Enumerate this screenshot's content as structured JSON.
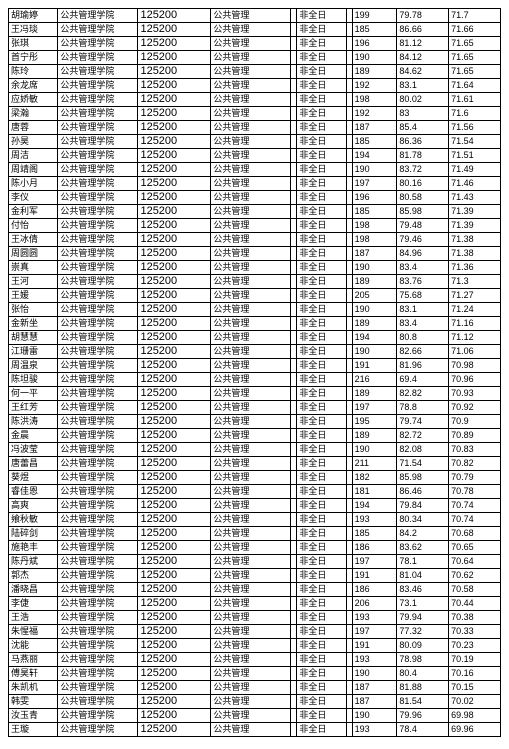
{
  "table": {
    "columns": [
      {
        "key": "name",
        "class": "col0"
      },
      {
        "key": "school",
        "class": "col1"
      },
      {
        "key": "code",
        "class": "col2"
      },
      {
        "key": "major",
        "class": "col3"
      },
      {
        "key": "gap1",
        "class": "col4"
      },
      {
        "key": "type",
        "class": "col5"
      },
      {
        "key": "gap2",
        "class": "col6"
      },
      {
        "key": "score1",
        "class": "col7"
      },
      {
        "key": "score2",
        "class": "col8"
      },
      {
        "key": "score3",
        "class": "col9"
      }
    ],
    "rows": [
      {
        "name": "胡瑜婷",
        "school": "公共管理学院",
        "code": "125200",
        "major": "公共管理",
        "gap1": "",
        "type": "非全日",
        "gap2": "",
        "score1": "199",
        "score2": "79.78",
        "score3": "71.7"
      },
      {
        "name": "王冯琰",
        "school": "公共管理学院",
        "code": "125200",
        "major": "公共管理",
        "gap1": "",
        "type": "非全日",
        "gap2": "",
        "score1": "185",
        "score2": "86.66",
        "score3": "71.66"
      },
      {
        "name": "张琪",
        "school": "公共管理学院",
        "code": "125200",
        "major": "公共管理",
        "gap1": "",
        "type": "非全日",
        "gap2": "",
        "score1": "196",
        "score2": "81.12",
        "score3": "71.65"
      },
      {
        "name": "首宁彤",
        "school": "公共管理学院",
        "code": "125200",
        "major": "公共管理",
        "gap1": "",
        "type": "非全日",
        "gap2": "",
        "score1": "190",
        "score2": "84.12",
        "score3": "71.65"
      },
      {
        "name": "陈玲",
        "school": "公共管理学院",
        "code": "125200",
        "major": "公共管理",
        "gap1": "",
        "type": "非全日",
        "gap2": "",
        "score1": "189",
        "score2": "84.62",
        "score3": "71.65"
      },
      {
        "name": "余龙席",
        "school": "公共管理学院",
        "code": "125200",
        "major": "公共管理",
        "gap1": "",
        "type": "非全日",
        "gap2": "",
        "score1": "192",
        "score2": "83.1",
        "score3": "71.64"
      },
      {
        "name": "应娇敏",
        "school": "公共管理学院",
        "code": "125200",
        "major": "公共管理",
        "gap1": "",
        "type": "非全日",
        "gap2": "",
        "score1": "198",
        "score2": "80.02",
        "score3": "71.61"
      },
      {
        "name": "梁瀚",
        "school": "公共管理学院",
        "code": "125200",
        "major": "公共管理",
        "gap1": "",
        "type": "非全日",
        "gap2": "",
        "score1": "192",
        "score2": "83",
        "score3": "71.6"
      },
      {
        "name": "唐蓉",
        "school": "公共管理学院",
        "code": "125200",
        "major": "公共管理",
        "gap1": "",
        "type": "非全日",
        "gap2": "",
        "score1": "187",
        "score2": "85.4",
        "score3": "71.56"
      },
      {
        "name": "孙昊",
        "school": "公共管理学院",
        "code": "125200",
        "major": "公共管理",
        "gap1": "",
        "type": "非全日",
        "gap2": "",
        "score1": "185",
        "score2": "86.36",
        "score3": "71.54"
      },
      {
        "name": "周洁",
        "school": "公共管理学院",
        "code": "125200",
        "major": "公共管理",
        "gap1": "",
        "type": "非全日",
        "gap2": "",
        "score1": "194",
        "score2": "81.78",
        "score3": "71.51"
      },
      {
        "name": "周靖阁",
        "school": "公共管理学院",
        "code": "125200",
        "major": "公共管理",
        "gap1": "",
        "type": "非全日",
        "gap2": "",
        "score1": "190",
        "score2": "83.72",
        "score3": "71.49"
      },
      {
        "name": "陈小月",
        "school": "公共管理学院",
        "code": "125200",
        "major": "公共管理",
        "gap1": "",
        "type": "非全日",
        "gap2": "",
        "score1": "197",
        "score2": "80.16",
        "score3": "71.46"
      },
      {
        "name": "李仪",
        "school": "公共管理学院",
        "code": "125200",
        "major": "公共管理",
        "gap1": "",
        "type": "非全日",
        "gap2": "",
        "score1": "196",
        "score2": "80.58",
        "score3": "71.43"
      },
      {
        "name": "金利军",
        "school": "公共管理学院",
        "code": "125200",
        "major": "公共管理",
        "gap1": "",
        "type": "非全日",
        "gap2": "",
        "score1": "185",
        "score2": "85.98",
        "score3": "71.39"
      },
      {
        "name": "付怡",
        "school": "公共管理学院",
        "code": "125200",
        "major": "公共管理",
        "gap1": "",
        "type": "非全日",
        "gap2": "",
        "score1": "198",
        "score2": "79.48",
        "score3": "71.39"
      },
      {
        "name": "王冰倩",
        "school": "公共管理学院",
        "code": "125200",
        "major": "公共管理",
        "gap1": "",
        "type": "非全日",
        "gap2": "",
        "score1": "198",
        "score2": "79.46",
        "score3": "71.38"
      },
      {
        "name": "周圆圆",
        "school": "公共管理学院",
        "code": "125200",
        "major": "公共管理",
        "gap1": "",
        "type": "非全日",
        "gap2": "",
        "score1": "187",
        "score2": "84.96",
        "score3": "71.38"
      },
      {
        "name": "崇真",
        "school": "公共管理学院",
        "code": "125200",
        "major": "公共管理",
        "gap1": "",
        "type": "非全日",
        "gap2": "",
        "score1": "190",
        "score2": "83.4",
        "score3": "71.36"
      },
      {
        "name": "王河",
        "school": "公共管理学院",
        "code": "125200",
        "major": "公共管理",
        "gap1": "",
        "type": "非全日",
        "gap2": "",
        "score1": "189",
        "score2": "83.76",
        "score3": "71.3"
      },
      {
        "name": "王媛",
        "school": "公共管理学院",
        "code": "125200",
        "major": "公共管理",
        "gap1": "",
        "type": "非全日",
        "gap2": "",
        "score1": "205",
        "score2": "75.68",
        "score3": "71.27"
      },
      {
        "name": "张怡",
        "school": "公共管理学院",
        "code": "125200",
        "major": "公共管理",
        "gap1": "",
        "type": "非全日",
        "gap2": "",
        "score1": "190",
        "score2": "83.1",
        "score3": "71.24"
      },
      {
        "name": "金新坐",
        "school": "公共管理学院",
        "code": "125200",
        "major": "公共管理",
        "gap1": "",
        "type": "非全日",
        "gap2": "",
        "score1": "189",
        "score2": "83.4",
        "score3": "71.16"
      },
      {
        "name": "胡慧慧",
        "school": "公共管理学院",
        "code": "125200",
        "major": "公共管理",
        "gap1": "",
        "type": "非全日",
        "gap2": "",
        "score1": "194",
        "score2": "80.8",
        "score3": "71.12"
      },
      {
        "name": "江珊雷",
        "school": "公共管理学院",
        "code": "125200",
        "major": "公共管理",
        "gap1": "",
        "type": "非全日",
        "gap2": "",
        "score1": "190",
        "score2": "82.66",
        "score3": "71.06"
      },
      {
        "name": "周温泉",
        "school": "公共管理学院",
        "code": "125200",
        "major": "公共管理",
        "gap1": "",
        "type": "非全日",
        "gap2": "",
        "score1": "191",
        "score2": "81.96",
        "score3": "70.98"
      },
      {
        "name": "陈坦骏",
        "school": "公共管理学院",
        "code": "125200",
        "major": "公共管理",
        "gap1": "",
        "type": "非全日",
        "gap2": "",
        "score1": "216",
        "score2": "69.4",
        "score3": "70.96"
      },
      {
        "name": "何一平",
        "school": "公共管理学院",
        "code": "125200",
        "major": "公共管理",
        "gap1": "",
        "type": "非全日",
        "gap2": "",
        "score1": "189",
        "score2": "82.82",
        "score3": "70.93"
      },
      {
        "name": "王红芳",
        "school": "公共管理学院",
        "code": "125200",
        "major": "公共管理",
        "gap1": "",
        "type": "非全日",
        "gap2": "",
        "score1": "197",
        "score2": "78.8",
        "score3": "70.92"
      },
      {
        "name": "陈洪涛",
        "school": "公共管理学院",
        "code": "125200",
        "major": "公共管理",
        "gap1": "",
        "type": "非全日",
        "gap2": "",
        "score1": "195",
        "score2": "79.74",
        "score3": "70.9"
      },
      {
        "name": "金晨",
        "school": "公共管理学院",
        "code": "125200",
        "major": "公共管理",
        "gap1": "",
        "type": "非全日",
        "gap2": "",
        "score1": "189",
        "score2": "82.72",
        "score3": "70.89"
      },
      {
        "name": "冯波莹",
        "school": "公共管理学院",
        "code": "125200",
        "major": "公共管理",
        "gap1": "",
        "type": "非全日",
        "gap2": "",
        "score1": "190",
        "score2": "82.08",
        "score3": "70.83"
      },
      {
        "name": "唐蕾昌",
        "school": "公共管理学院",
        "code": "125200",
        "major": "公共管理",
        "gap1": "",
        "type": "非全日",
        "gap2": "",
        "score1": "211",
        "score2": "71.54",
        "score3": "70.82"
      },
      {
        "name": "葵煜",
        "school": "公共管理学院",
        "code": "125200",
        "major": "公共管理",
        "gap1": "",
        "type": "非全日",
        "gap2": "",
        "score1": "182",
        "score2": "85.98",
        "score3": "70.79"
      },
      {
        "name": "睿佳恩",
        "school": "公共管理学院",
        "code": "125200",
        "major": "公共管理",
        "gap1": "",
        "type": "非全日",
        "gap2": "",
        "score1": "181",
        "score2": "86.46",
        "score3": "70.78"
      },
      {
        "name": "高爽",
        "school": "公共管理学院",
        "code": "125200",
        "major": "公共管理",
        "gap1": "",
        "type": "非全日",
        "gap2": "",
        "score1": "194",
        "score2": "79.84",
        "score3": "70.74"
      },
      {
        "name": "飨秋敏",
        "school": "公共管理学院",
        "code": "125200",
        "major": "公共管理",
        "gap1": "",
        "type": "非全日",
        "gap2": "",
        "score1": "193",
        "score2": "80.34",
        "score3": "70.74"
      },
      {
        "name": "陆碎剑",
        "school": "公共管理学院",
        "code": "125200",
        "major": "公共管理",
        "gap1": "",
        "type": "非全日",
        "gap2": "",
        "score1": "185",
        "score2": "84.2",
        "score3": "70.68"
      },
      {
        "name": "施艳丰",
        "school": "公共管理学院",
        "code": "125200",
        "major": "公共管理",
        "gap1": "",
        "type": "非全日",
        "gap2": "",
        "score1": "186",
        "score2": "83.62",
        "score3": "70.65"
      },
      {
        "name": "陈丹斌",
        "school": "公共管理学院",
        "code": "125200",
        "major": "公共管理",
        "gap1": "",
        "type": "非全日",
        "gap2": "",
        "score1": "197",
        "score2": "78.1",
        "score3": "70.64"
      },
      {
        "name": "郭杰",
        "school": "公共管理学院",
        "code": "125200",
        "major": "公共管理",
        "gap1": "",
        "type": "非全日",
        "gap2": "",
        "score1": "191",
        "score2": "81.04",
        "score3": "70.62"
      },
      {
        "name": "潘晓昌",
        "school": "公共管理学院",
        "code": "125200",
        "major": "公共管理",
        "gap1": "",
        "type": "非全日",
        "gap2": "",
        "score1": "186",
        "score2": "83.46",
        "score3": "70.58"
      },
      {
        "name": "李倢",
        "school": "公共管理学院",
        "code": "125200",
        "major": "公共管理",
        "gap1": "",
        "type": "非全日",
        "gap2": "",
        "score1": "206",
        "score2": "73.1",
        "score3": "70.44"
      },
      {
        "name": "王浩",
        "school": "公共管理学院",
        "code": "125200",
        "major": "公共管理",
        "gap1": "",
        "type": "非全日",
        "gap2": "",
        "score1": "193",
        "score2": "79.94",
        "score3": "70.38"
      },
      {
        "name": "朱惺福",
        "school": "公共管理学院",
        "code": "125200",
        "major": "公共管理",
        "gap1": "",
        "type": "非全日",
        "gap2": "",
        "score1": "197",
        "score2": "77.32",
        "score3": "70.33"
      },
      {
        "name": "沈能",
        "school": "公共管理学院",
        "code": "125200",
        "major": "公共管理",
        "gap1": "",
        "type": "非全日",
        "gap2": "",
        "score1": "191",
        "score2": "80.09",
        "score3": "70.23"
      },
      {
        "name": "马燕丽",
        "school": "公共管理学院",
        "code": "125200",
        "major": "公共管理",
        "gap1": "",
        "type": "非全日",
        "gap2": "",
        "score1": "193",
        "score2": "78.98",
        "score3": "70.19"
      },
      {
        "name": "傅昊轩",
        "school": "公共管理学院",
        "code": "125200",
        "major": "公共管理",
        "gap1": "",
        "type": "非全日",
        "gap2": "",
        "score1": "190",
        "score2": "80.4",
        "score3": "70.16"
      },
      {
        "name": "朱凯机",
        "school": "公共管理学院",
        "code": "125200",
        "major": "公共管理",
        "gap1": "",
        "type": "非全日",
        "gap2": "",
        "score1": "187",
        "score2": "81.88",
        "score3": "70.15"
      },
      {
        "name": "韩雯",
        "school": "公共管理学院",
        "code": "125200",
        "major": "公共管理",
        "gap1": "",
        "type": "非全日",
        "gap2": "",
        "score1": "187",
        "score2": "81.54",
        "score3": "70.02"
      },
      {
        "name": "汝玉青",
        "school": "公共管理学院",
        "code": "125200",
        "major": "公共管理",
        "gap1": "",
        "type": "非全日",
        "gap2": "",
        "score1": "190",
        "score2": "79.96",
        "score3": "69.98"
      },
      {
        "name": "王璇",
        "school": "公共管理学院",
        "code": "125200",
        "major": "公共管理",
        "gap1": "",
        "type": "非全日",
        "gap2": "",
        "score1": "193",
        "score2": "78.4",
        "score3": "69.96"
      }
    ]
  }
}
